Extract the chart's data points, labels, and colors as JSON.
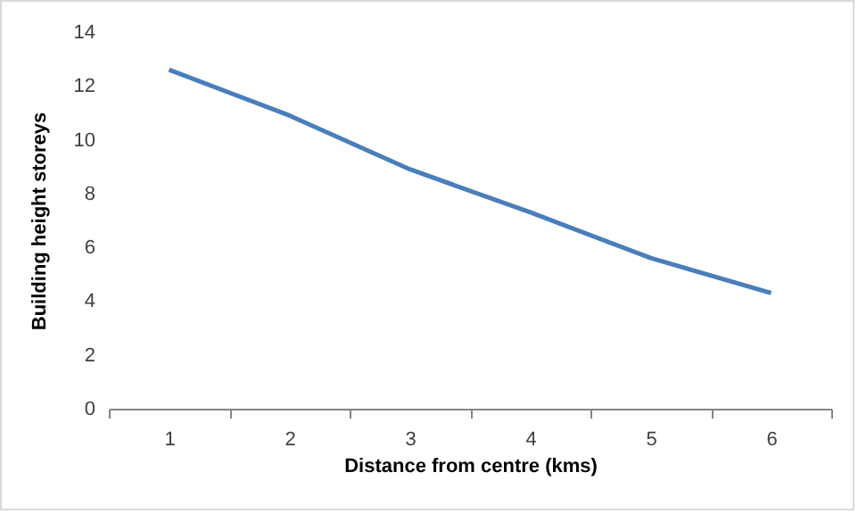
{
  "chart_data": {
    "type": "line",
    "xlabel": "Distance  from centre (kms)",
    "ylabel": "Building  height storeys",
    "categories": [
      "1",
      "2",
      "3",
      "4",
      "5",
      "6"
    ],
    "series": [
      {
        "color": "#4a7ebb",
        "values": [
          12.6,
          10.9,
          8.9,
          7.3,
          5.6,
          4.3
        ]
      }
    ],
    "ylim": [
      0,
      14
    ],
    "yticks": [
      0,
      2,
      4,
      6,
      8,
      10,
      12,
      14
    ],
    "grid": false
  }
}
